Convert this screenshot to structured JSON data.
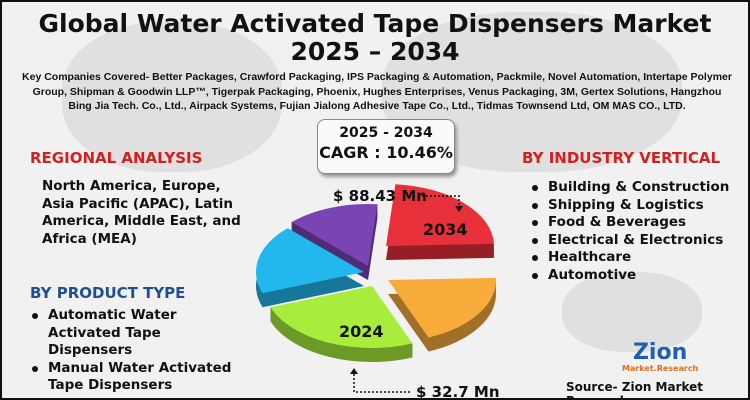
{
  "title": {
    "line1": "Global Water Activated Tape Dispensers Market",
    "line2": "2025 – 2034"
  },
  "companies": "Key Companies Covered- Better Packages, Crawford Packaging, IPS Packaging & Automation, Packmile, Novel Automation, Intertape Polymer Group, Shipman & Goodwin LLP™, Tigerpak Packaging, Phoenix, Hughes Enterprises, Venus Packaging, 3M, Gertex Solutions, Hangzhou Bing Jia Tech. Co., Ltd., Airpack Systems, Fujian Jialong Adhesive Tape Co., Ltd., Tidmas Townsend Ltd, OM MAS CO., LTD.",
  "cagr": {
    "period": "2025 - 2034",
    "value": "CAGR : 10.46%"
  },
  "market": {
    "value_2034": "$ 88.43 Mn",
    "label_2034": "2034",
    "value_2024": "$ 32.7 Mn",
    "label_2024": "2024"
  },
  "regional": {
    "heading": "REGIONAL ANALYSIS",
    "text": "North America, Europe, Asia Pacific (APAC), Latin America, Middle East, and Africa (MEA)"
  },
  "product": {
    "heading": "BY PRODUCT TYPE",
    "items": [
      "Automatic Water Activated Tape Dispensers",
      "Manual Water Activated Tape Dispensers"
    ]
  },
  "industry": {
    "heading": "BY INDUSTRY VERTICAL",
    "items": [
      "Building & Construction",
      "Shipping & Logistics",
      "Food & Beverages",
      "Electrical & Electronics",
      "Healthcare",
      "Automotive"
    ]
  },
  "logo": {
    "name": "Zion",
    "sub": "Market.Research"
  },
  "source": "Source- Zion Market Research",
  "colors": {
    "red": "#e8303a",
    "orange": "#f8ac3c",
    "green": "#a8ec3c",
    "blue": "#22b8ee",
    "purple": "#7a44b4",
    "heading_red": "#d21f1f",
    "heading_blue": "#1f4f8f"
  }
}
